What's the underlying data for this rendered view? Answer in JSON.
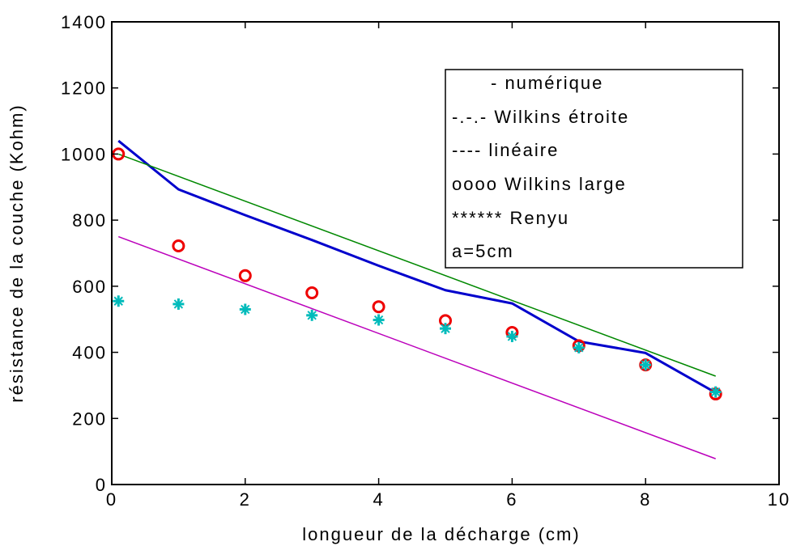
{
  "chart_data": {
    "type": "line",
    "title": "",
    "xlabel": "longueur de la décharge (cm)",
    "ylabel": "résistance de la couche (Kohm)",
    "xlim": [
      0,
      10
    ],
    "ylim": [
      0,
      1400
    ],
    "xticks": [
      0,
      2,
      4,
      6,
      8,
      10
    ],
    "yticks": [
      0,
      200,
      400,
      600,
      800,
      1000,
      1200,
      1400
    ],
    "grid": false,
    "legend_position": "top-right",
    "legend_entries": [
      "- numérique",
      "-.-.-  Wilkins étroite",
      "----  linéaire",
      "oooo  Wilkins large",
      "******  Renyu",
      "a=5cm"
    ],
    "series": [
      {
        "style": "line",
        "color": "#0000cc",
        "width": 3,
        "x": [
          0.1,
          1,
          2,
          3,
          4,
          5,
          6,
          7,
          8,
          9.05
        ],
        "y": [
          1040,
          893,
          815,
          740,
          662,
          588,
          548,
          433,
          398,
          278
        ]
      },
      {
        "style": "line",
        "color": "#008800",
        "width": 1.5,
        "x": [
          0.1,
          9.05
        ],
        "y": [
          1000,
          328
        ]
      },
      {
        "style": "line",
        "color": "#bb00bb",
        "width": 1.5,
        "x": [
          0.1,
          9.05
        ],
        "y": [
          750,
          78
        ]
      },
      {
        "style": "marker-circle",
        "color": "#ee0000",
        "x": [
          0.1,
          1,
          2,
          3,
          4,
          5,
          6,
          7,
          8,
          9.05
        ],
        "y": [
          1000,
          722,
          632,
          580,
          538,
          496,
          460,
          420,
          362,
          274
        ]
      },
      {
        "style": "marker-star",
        "color": "#00bbbb",
        "x": [
          0.1,
          1,
          2,
          3,
          4,
          5,
          6,
          7,
          8,
          9.05
        ],
        "y": [
          555,
          546,
          530,
          512,
          498,
          472,
          448,
          414,
          362,
          280
        ]
      }
    ]
  }
}
